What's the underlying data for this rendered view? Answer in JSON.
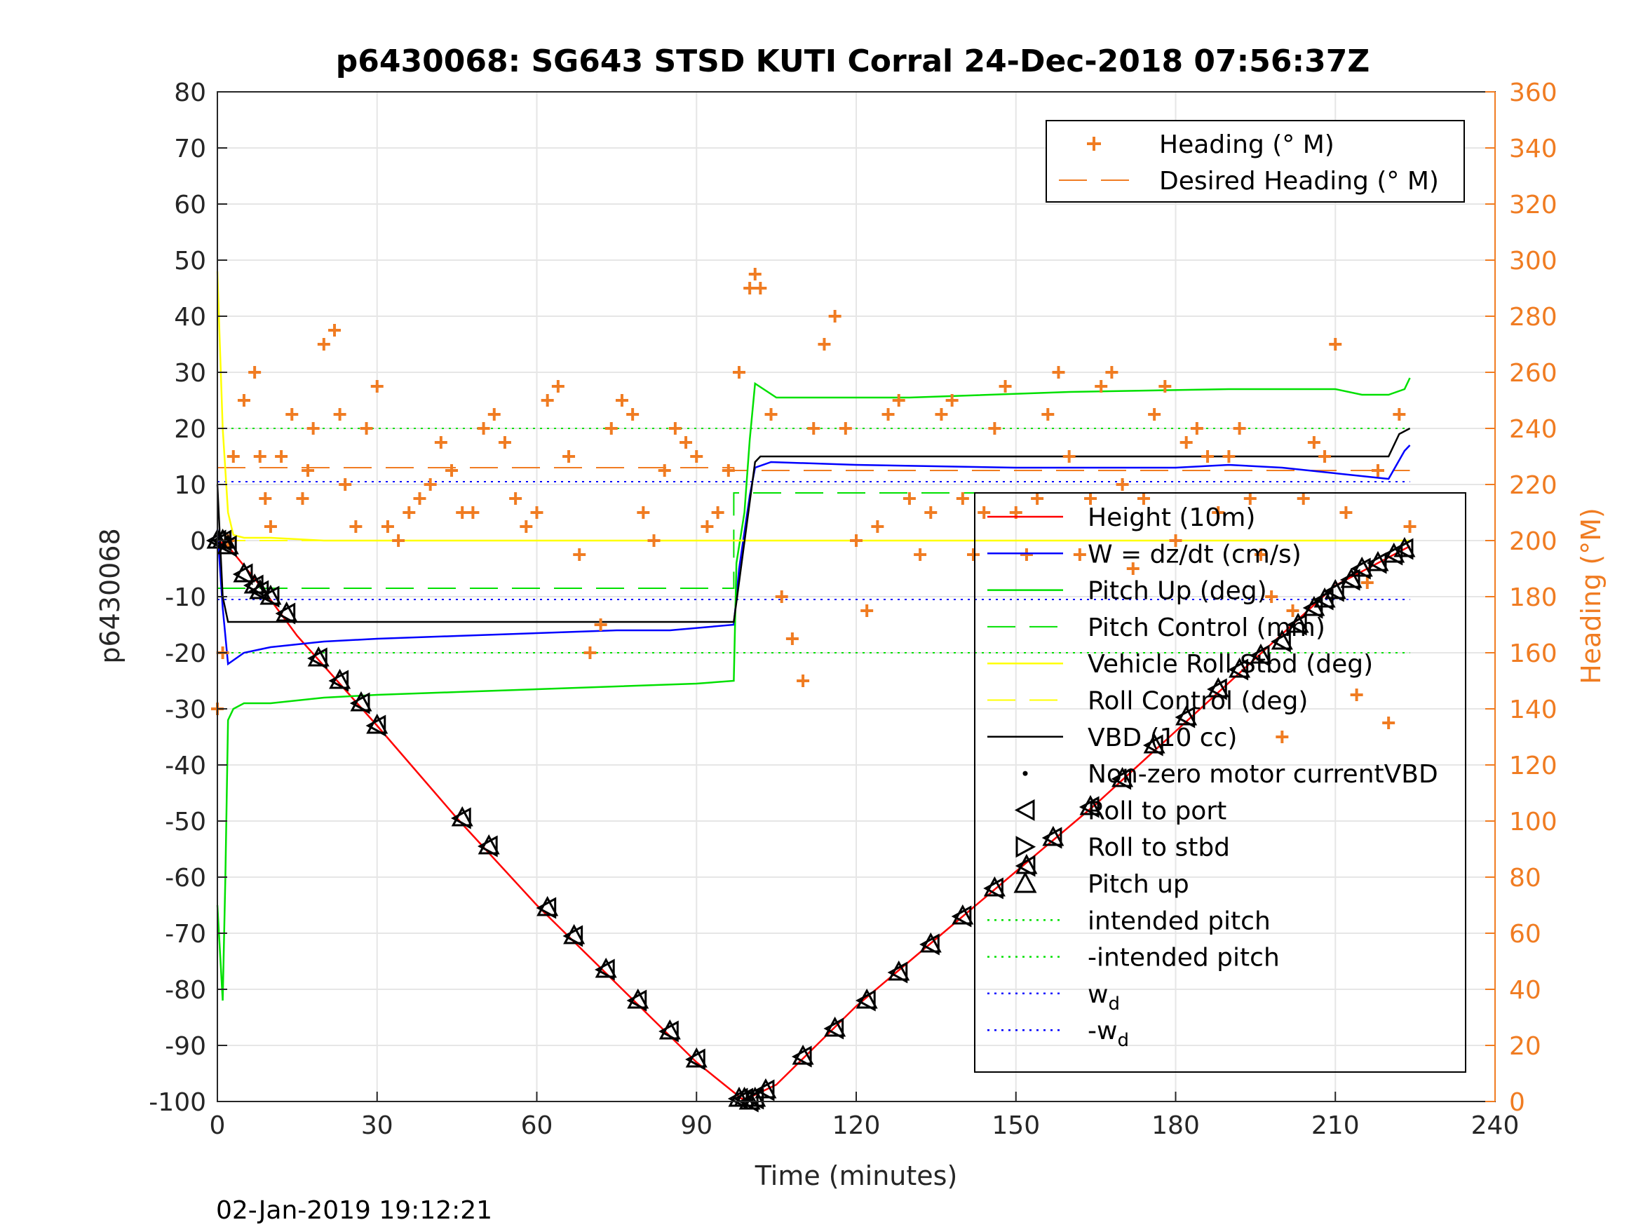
{
  "chart_data": {
    "type": "line",
    "title": "p6430068: SG643 STSD KUTI Corral 24-Dec-2018 07:56:37Z",
    "xlabel": "Time (minutes)",
    "ylabel": "p6430068",
    "ylabel_right": "Heading (°M)",
    "xlim": [
      0,
      240
    ],
    "ylim": [
      -100,
      80
    ],
    "ylim_right": [
      0,
      360
    ],
    "x_ticks": [
      "0",
      "30",
      "60",
      "90",
      "120",
      "150",
      "180",
      "210",
      "240"
    ],
    "y_ticks": [
      "80",
      "70",
      "60",
      "50",
      "40",
      "30",
      "20",
      "10",
      "0",
      "-10",
      "-20",
      "-30",
      "-40",
      "-50",
      "-60",
      "-70",
      "-80",
      "-90",
      "-100"
    ],
    "y_ticks_right": [
      "360",
      "340",
      "320",
      "300",
      "280",
      "260",
      "240",
      "220",
      "200",
      "180",
      "160",
      "140",
      "120",
      "100",
      "80",
      "60",
      "40",
      "20",
      "0"
    ],
    "grid": true,
    "timestamp": "02-Jan-2019 19:12:21",
    "legend_right_axis": [
      {
        "label": "Heading (° M)",
        "color": "#f07c22",
        "style": "plus"
      },
      {
        "label": "Desired Heading (° M)",
        "color": "#f07c22",
        "style": "dash"
      }
    ],
    "legend_left_axis": [
      {
        "label": "Height (10m)",
        "color": "#ff0000",
        "style": "line"
      },
      {
        "label": "W = dz/dt (cm/s)",
        "color": "#0000ff",
        "style": "line"
      },
      {
        "label": "Pitch Up (deg)",
        "color": "#00e000",
        "style": "line"
      },
      {
        "label": "Pitch Control (mm)",
        "color": "#00e000",
        "style": "dash"
      },
      {
        "label": "Vehicle Roll Stbd (deg)",
        "color": "#ffff00",
        "style": "line"
      },
      {
        "label": "Roll Control (deg)",
        "color": "#ffff00",
        "style": "dash"
      },
      {
        "label": "VBD (10 cc)",
        "color": "#000000",
        "style": "line"
      },
      {
        "label": "Non-zero motor currentVBD",
        "color": "#000000",
        "style": "dot"
      },
      {
        "label": "Roll to port",
        "color": "#000000",
        "style": "tri-left"
      },
      {
        "label": "Roll to stbd",
        "color": "#000000",
        "style": "tri-right"
      },
      {
        "label": "Pitch up",
        "color": "#000000",
        "style": "tri-up"
      },
      {
        "label": "intended pitch",
        "color": "#00e000",
        "style": "dotted"
      },
      {
        "label": "-intended pitch",
        "color": "#00e000",
        "style": "dotted"
      },
      {
        "label": "w",
        "sub": "d",
        "color": "#0000ff",
        "style": "dotted"
      },
      {
        "label": "-w",
        "sub": "d",
        "color": "#0000ff",
        "style": "dotted"
      }
    ],
    "reference_lines": {
      "intended_pitch": 20,
      "neg_intended_pitch": -20,
      "w_d": 10.5,
      "neg_w_d": -10.5,
      "desired_heading": [
        [
          0,
          226
        ],
        [
          97,
          226
        ],
        [
          97,
          225
        ],
        [
          224,
          225
        ]
      ],
      "pitch_control": [
        [
          0,
          -8.5
        ],
        [
          97,
          -8.5
        ],
        [
          97,
          8.5
        ],
        [
          224,
          8.5
        ]
      ],
      "roll_control": [
        [
          0,
          0
        ],
        [
          224,
          0
        ]
      ]
    },
    "series": [
      {
        "name": "Height (10m)",
        "color": "#ff0000",
        "x": [
          0,
          2,
          8,
          15,
          30,
          45,
          60,
          75,
          90,
          98.5,
          99.5,
          105,
          120,
          135,
          150,
          165,
          180,
          195,
          210,
          218,
          224
        ],
        "y": [
          0,
          -1,
          -8,
          -17,
          -33,
          -49.5,
          -65,
          -79,
          -93,
          -99.5,
          -99.5,
          -97,
          -83,
          -71,
          -59,
          -47,
          -34,
          -21,
          -8,
          -4,
          -1
        ]
      },
      {
        "name": "W = dz/dt (cm/s)",
        "color": "#0000ff",
        "x": [
          0,
          1,
          2,
          5,
          10,
          20,
          30,
          45,
          60,
          75,
          85,
          97,
          98,
          100,
          101,
          104,
          120,
          150,
          180,
          190,
          200,
          210,
          220,
          223,
          224
        ],
        "y": [
          2,
          -12,
          -22,
          -20,
          -19,
          -18,
          -17.5,
          -17,
          -16.5,
          -16,
          -16,
          -15,
          -5,
          8,
          13,
          14,
          13.5,
          13,
          13,
          13.5,
          13,
          12,
          11,
          16,
          17
        ]
      },
      {
        "name": "Pitch Up (deg)",
        "color": "#00e000",
        "x": [
          0,
          1,
          1.5,
          2,
          3,
          5,
          10,
          20,
          30,
          45,
          60,
          75,
          90,
          97,
          97.5,
          99,
          100,
          101,
          105,
          130,
          160,
          190,
          210,
          215,
          220,
          223,
          224
        ],
        "y": [
          -65,
          -82,
          -60,
          -32,
          -30,
          -29,
          -29,
          -28,
          -27.5,
          -27,
          -26.5,
          -26,
          -25.5,
          -25,
          -4,
          5,
          18,
          28,
          25.5,
          25.5,
          26.5,
          27,
          27,
          26,
          26,
          27,
          29
        ]
      },
      {
        "name": "Vehicle Roll Stbd (deg)",
        "color": "#ffff00",
        "x": [
          0,
          1,
          2,
          3,
          5,
          10,
          20,
          40,
          60,
          80,
          97,
          100,
          120,
          140,
          160,
          180,
          200,
          224
        ],
        "y": [
          48,
          20,
          5,
          1,
          0.5,
          0.5,
          0,
          0,
          0,
          0,
          0,
          0,
          0,
          0,
          0,
          0,
          0,
          0
        ]
      },
      {
        "name": "VBD (10 cc)",
        "color": "#000000",
        "x": [
          0,
          1,
          2,
          97,
          101,
          102,
          160,
          220,
          222,
          224
        ],
        "y": [
          10,
          -10,
          -14.5,
          -14.5,
          14,
          15,
          15,
          15,
          19,
          20
        ]
      },
      {
        "name": "Heading (° M)",
        "color": "#f07c22",
        "axis": "right",
        "x": [
          0,
          1,
          2,
          3,
          5,
          7,
          8,
          9,
          10,
          12,
          14,
          16,
          17,
          18,
          20,
          22,
          23,
          24,
          26,
          28,
          30,
          32,
          34,
          36,
          38,
          40,
          42,
          44,
          46,
          48,
          50,
          52,
          54,
          56,
          58,
          60,
          62,
          64,
          66,
          68,
          70,
          72,
          74,
          76,
          78,
          80,
          82,
          84,
          86,
          88,
          90,
          92,
          94,
          96,
          98,
          100,
          101,
          102,
          104,
          106,
          108,
          110,
          112,
          114,
          116,
          118,
          120,
          122,
          124,
          126,
          128,
          130,
          132,
          134,
          136,
          138,
          140,
          142,
          144,
          146,
          148,
          150,
          152,
          154,
          156,
          158,
          160,
          162,
          164,
          166,
          168,
          170,
          172,
          174,
          176,
          178,
          180,
          182,
          184,
          186,
          188,
          190,
          192,
          194,
          196,
          198,
          200,
          202,
          204,
          206,
          208,
          210,
          212,
          214,
          216,
          218,
          220,
          222,
          224
        ],
        "y": [
          140,
          160,
          200,
          230,
          250,
          260,
          230,
          215,
          205,
          230,
          245,
          215,
          225,
          240,
          270,
          275,
          245,
          220,
          205,
          240,
          255,
          205,
          200,
          210,
          215,
          220,
          235,
          225,
          210,
          210,
          240,
          245,
          235,
          215,
          205,
          210,
          250,
          255,
          230,
          195,
          160,
          170,
          240,
          250,
          245,
          210,
          200,
          225,
          240,
          235,
          230,
          205,
          210,
          225,
          260,
          290,
          295,
          290,
          245,
          180,
          165,
          150,
          240,
          270,
          280,
          240,
          200,
          175,
          205,
          245,
          250,
          215,
          195,
          210,
          245,
          250,
          215,
          195,
          210,
          240,
          255,
          210,
          195,
          215,
          245,
          260,
          230,
          195,
          215,
          255,
          260,
          220,
          190,
          215,
          245,
          255,
          200,
          235,
          240,
          230,
          210,
          230,
          240,
          215,
          195,
          180,
          130,
          175,
          215,
          235,
          230,
          270,
          210,
          145,
          185,
          225,
          135,
          245,
          205
        ]
      }
    ],
    "markers": {
      "color": "#000000",
      "points": [
        [
          0,
          0
        ],
        [
          1,
          0
        ],
        [
          2,
          -1
        ],
        [
          5,
          -6
        ],
        [
          7,
          -8
        ],
        [
          8,
          -9
        ],
        [
          10,
          -10
        ],
        [
          13,
          -13
        ],
        [
          19,
          -21
        ],
        [
          23,
          -25
        ],
        [
          27,
          -29
        ],
        [
          30,
          -33
        ],
        [
          46,
          -49.5
        ],
        [
          51,
          -54.5
        ],
        [
          62,
          -65.5
        ],
        [
          67,
          -70.5
        ],
        [
          73,
          -76.5
        ],
        [
          79,
          -82
        ],
        [
          85,
          -87.5
        ],
        [
          90,
          -92.5
        ],
        [
          98,
          -99.5
        ],
        [
          99,
          -99.5
        ],
        [
          100,
          -100
        ],
        [
          101,
          -99.5
        ],
        [
          103,
          -98
        ],
        [
          110,
          -92
        ],
        [
          116,
          -87
        ],
        [
          122,
          -82
        ],
        [
          128,
          -77
        ],
        [
          134,
          -72
        ],
        [
          140,
          -67
        ],
        [
          146,
          -62
        ],
        [
          152,
          -58
        ],
        [
          157,
          -53
        ],
        [
          164,
          -47.5
        ],
        [
          170,
          -42.5
        ],
        [
          176,
          -36.5
        ],
        [
          182,
          -31.5
        ],
        [
          188,
          -26.5
        ],
        [
          192,
          -23
        ],
        [
          196,
          -20.5
        ],
        [
          200,
          -18
        ],
        [
          203,
          -15
        ],
        [
          206,
          -12
        ],
        [
          208,
          -10.5
        ],
        [
          210,
          -9
        ],
        [
          213,
          -7
        ],
        [
          215,
          -5
        ],
        [
          218,
          -4
        ],
        [
          221,
          -2.5
        ],
        [
          223,
          -1.5
        ]
      ]
    }
  }
}
